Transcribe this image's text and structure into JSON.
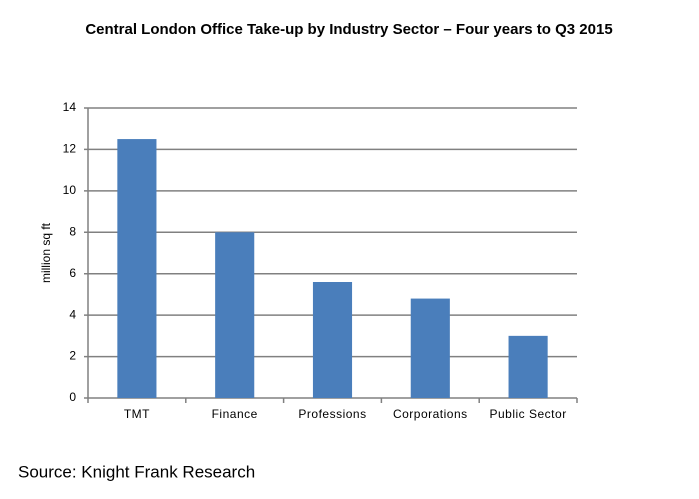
{
  "chart_data": {
    "type": "bar",
    "title": "Central London Office Take-up by Industry Sector – Four years to Q3 2015",
    "y_label": "million sq ft",
    "categories": [
      "TMT",
      "Finance",
      "Professions",
      "Corporations",
      "Public Sector"
    ],
    "values": [
      12.5,
      8,
      5.6,
      4.8,
      3
    ],
    "color": "#4a7ebb",
    "ylim": [
      0,
      14
    ],
    "yticks": [
      0,
      2,
      4,
      6,
      8,
      10,
      12,
      14
    ],
    "grid": true,
    "source": "Source: Knight Frank Research"
  }
}
